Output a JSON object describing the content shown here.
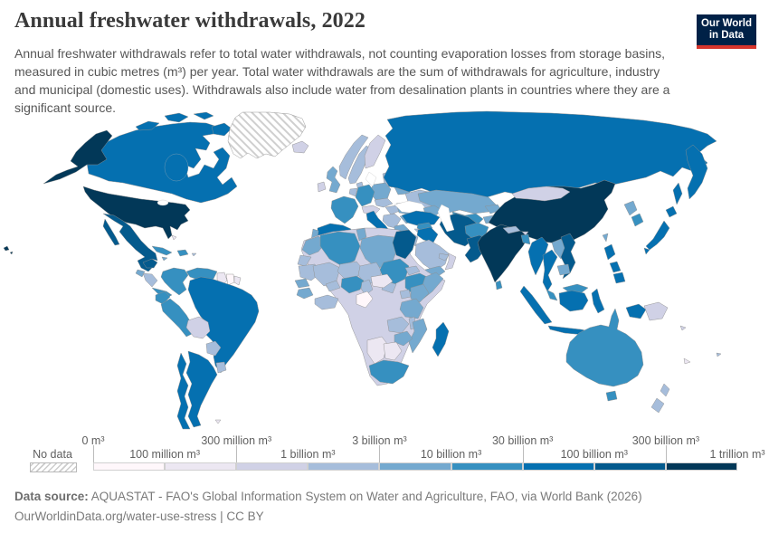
{
  "header": {
    "title": "Annual freshwater withdrawals, 2022",
    "subtitle": "Annual freshwater withdrawals refer to total water withdrawals, not counting evaporation losses from storage basins, measured in cubic metres (m³) per year. Total water withdrawals are the sum of withdrawals for agriculture, industry and municipal (domestic uses). Withdrawals also include water from desalination plants in countries where they are a significant source.",
    "logo": {
      "line1": "Our World",
      "line2": "in Data",
      "bg_color": "#002147",
      "stripe_color": "#d7352c"
    }
  },
  "legend": {
    "no_data_label": "No data",
    "ticks_top": [
      {
        "label": "0 m³",
        "boundary": 0
      },
      {
        "label": "300 million m³",
        "boundary": 2
      },
      {
        "label": "3 billion m³",
        "boundary": 4
      },
      {
        "label": "30 billion m³",
        "boundary": 6
      },
      {
        "label": "300 billion m³",
        "boundary": 8
      }
    ],
    "ticks_bottom": [
      {
        "label": "100 million m³",
        "boundary": 1
      },
      {
        "label": "1 billion m³",
        "boundary": 3
      },
      {
        "label": "10 billion m³",
        "boundary": 5
      },
      {
        "label": "100 billion m³",
        "boundary": 7
      },
      {
        "label": "1 trillion m³",
        "boundary": 9
      }
    ]
  },
  "footer": {
    "source_label": "Data source:",
    "source_text": " AQUASTAT - FAO's Global Information System on Water and Agriculture, FAO, via World Bank (2026)",
    "link_line": "OurWorldinData.org/water-use-stress | CC BY"
  },
  "chart_data": {
    "type": "choropleth",
    "title": "Annual freshwater withdrawals, 2022",
    "unit": "cubic metres (m³) per year",
    "legend_position": "bottom",
    "scale": {
      "type": "log-bins",
      "boundaries_m3": [
        0,
        100000000,
        300000000,
        1000000000,
        3000000000,
        10000000000,
        30000000000,
        100000000000,
        300000000000,
        1000000000000
      ],
      "bin_labels": [
        "0–100 million m³",
        "100–300 million m³",
        "300 million–1 billion m³",
        "1–3 billion m³",
        "3–10 billion m³",
        "10–30 billion m³",
        "30–100 billion m³",
        "100–300 billion m³",
        "300 billion–1 trillion m³"
      ],
      "colors": [
        "#fff7fb",
        "#ece7f2",
        "#d0d1e6",
        "#a6bddb",
        "#74a9cf",
        "#3690c0",
        "#0570b0",
        "#045a8d",
        "#023858"
      ],
      "no_data_style": "diagonal-hatch"
    },
    "countries": {
      "alaska": 8,
      "usa": 8,
      "hawaii": 8,
      "canada": 6,
      "greenland": "no-data",
      "mexico": 7,
      "guatemala": 4,
      "honduras-nicaragua": 3,
      "costa-rica-panama": 5,
      "cuba": 5,
      "jamaica": 4,
      "hispaniola": 5,
      "puerto-rico": 3,
      "bahamas": 1,
      "colombia": 5,
      "venezuela": 5,
      "guyana": 1,
      "suriname": 0,
      "french-guiana": 1,
      "ecuador": 5,
      "peru": 5,
      "brazil": 6,
      "bolivia": 2,
      "paraguay": 3,
      "uruguay": 3,
      "argentina": 6,
      "chile": 6,
      "falkland-islands": 1,
      "iceland": 2,
      "united-kingdom": 4,
      "ireland": 2,
      "norway": 3,
      "sweden": 3,
      "finland": 2,
      "denmark": 3,
      "baltic-states": 3,
      "belarus": 4,
      "poland": 4,
      "germany": 5,
      "benelux": 3,
      "france": 5,
      "spain": 6,
      "portugal": 4,
      "italy": 6,
      "switzerland-austria": 2,
      "czechia-slovakia": 3,
      "hungary": 3,
      "balkans": 3,
      "romania": 4,
      "bulgaria": 4,
      "greece": 4,
      "ukraine": 3,
      "russia": 6,
      "kazakhstan": 4,
      "uzbekistan": 5,
      "turkmenistan": 5,
      "kyrgyzstan": 4,
      "tajikistan": 4,
      "caucasus": 4,
      "turkey": 6,
      "cyprus": 3,
      "syria": 5,
      "levant": 3,
      "iraq": 6,
      "iran": 7,
      "afghanistan": 5,
      "pakistan": 7,
      "saudi-arabia": 3,
      "yemen": 4,
      "oman": 2,
      "uae-qatar": 3,
      "india": 8,
      "nepal": 3,
      "bhutan": 2,
      "bangladesh": 5,
      "sri-lanka": 5,
      "china": 8,
      "mongolia": 2,
      "north-korea": 4,
      "south-korea": 5,
      "japan": 6,
      "taiwan": 4,
      "myanmar": 6,
      "thailand": 6,
      "laos": 4,
      "vietnam": 7,
      "cambodia": 4,
      "malaysia": 5,
      "indonesia": 6,
      "papua-new-guinea": 2,
      "philippines": 6,
      "australia": 5,
      "new-zealand": 3,
      "solomon-islands": 2,
      "fiji": 3,
      "new-caledonia": 1,
      "morocco": 4,
      "western-sahara": 3,
      "mauritania": 3,
      "senegal": 4,
      "guinea": 4,
      "mali": 3,
      "burkina-faso": 3,
      "ivory-coast-ghana": 3,
      "algeria": 5,
      "tunisia": 4,
      "libya": 4,
      "egypt": 7,
      "niger": 3,
      "chad": 3,
      "sudan": 5,
      "eritrea": 3,
      "ethiopia": 5,
      "somalia": 4,
      "south-sudan": 3,
      "nigeria": 5,
      "cameroon": 3,
      "central-african-republic": 1,
      "gabon-congo": 0,
      "central-africa": 2,
      "uganda": 3,
      "kenya": 4,
      "tanzania": 4,
      "zambia": 3,
      "malawi": 3,
      "mozambique": 4,
      "zimbabwe": 4,
      "namibia": 1,
      "botswana": 1,
      "south-africa": 5,
      "madagascar": 6
    }
  }
}
